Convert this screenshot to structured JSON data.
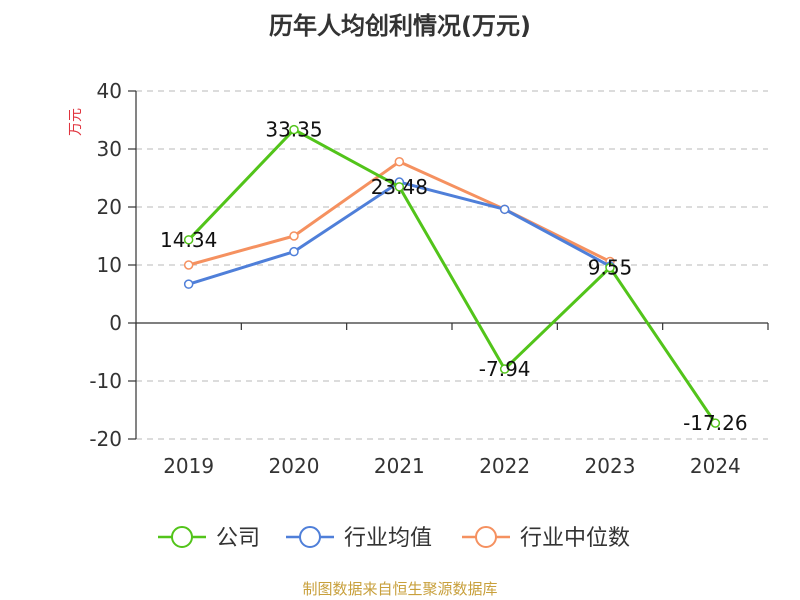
{
  "chart_data": {
    "type": "line",
    "title": "历年人均创利情况(万元)",
    "ylabel": "万元",
    "categories": [
      "2019",
      "2020",
      "2021",
      "2022",
      "2023",
      "2024"
    ],
    "ylim": [
      -20,
      40
    ],
    "yticks": [
      "40",
      "30",
      "20",
      "10",
      "0",
      "-10",
      "-20"
    ],
    "grid": true,
    "legend_position": "bottom",
    "series": [
      {
        "name": "公司",
        "color": "#52c41a",
        "values": [
          14.34,
          33.35,
          23.48,
          -7.94,
          9.55,
          -17.26
        ],
        "labels": [
          "14.34",
          "33.35",
          "23.48",
          "-7.94",
          "9.55",
          "-17.26"
        ]
      },
      {
        "name": "行业均值",
        "color": "#4f7fd9",
        "values": [
          6.7,
          12.3,
          24.3,
          19.6,
          9.8,
          null
        ]
      },
      {
        "name": "行业中位数",
        "color": "#f59160",
        "values": [
          10.0,
          15.0,
          27.8,
          19.6,
          10.6,
          null
        ]
      }
    ]
  },
  "footer": "制图数据来自恒生聚源数据库"
}
